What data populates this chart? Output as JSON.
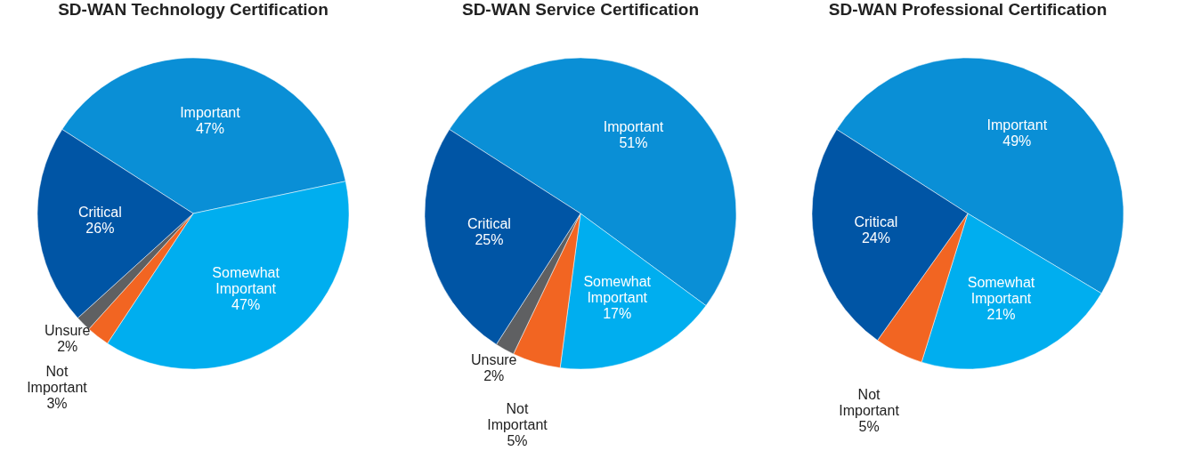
{
  "chart_data": [
    {
      "type": "pie",
      "title": "SD-WAN Technology Certification",
      "categories": [
        "Important",
        "Somewhat Important",
        "Not Important",
        "Unsure",
        "Critical"
      ],
      "values": [
        47,
        47,
        3,
        2,
        26
      ],
      "value_labels": [
        "47%",
        "47%",
        "3%",
        "2%",
        "26%"
      ],
      "colors": [
        "#0a8fd6",
        "#00aeef",
        "#f26522",
        "#5f6062",
        "#0055a5"
      ],
      "legend": false
    },
    {
      "type": "pie",
      "title": "SD-WAN Service Certification",
      "categories": [
        "Important",
        "Somewhat Important",
        "Not Important",
        "Unsure",
        "Critical"
      ],
      "values": [
        51,
        17,
        5,
        2,
        25
      ],
      "value_labels": [
        "51%",
        "17%",
        "5%",
        "2%",
        "25%"
      ],
      "colors": [
        "#0a8fd6",
        "#00aeef",
        "#f26522",
        "#5f6062",
        "#0055a5"
      ],
      "legend": false
    },
    {
      "type": "pie",
      "title": "SD-WAN Professional Certification",
      "categories": [
        "Important",
        "Somewhat Important",
        "Not Important",
        "Critical"
      ],
      "values": [
        49,
        21,
        5,
        24
      ],
      "value_labels": [
        "49%",
        "21%",
        "5%",
        "24%"
      ],
      "colors": [
        "#0a8fd6",
        "#00aeef",
        "#f26522",
        "#0055a5"
      ],
      "legend": false
    }
  ]
}
